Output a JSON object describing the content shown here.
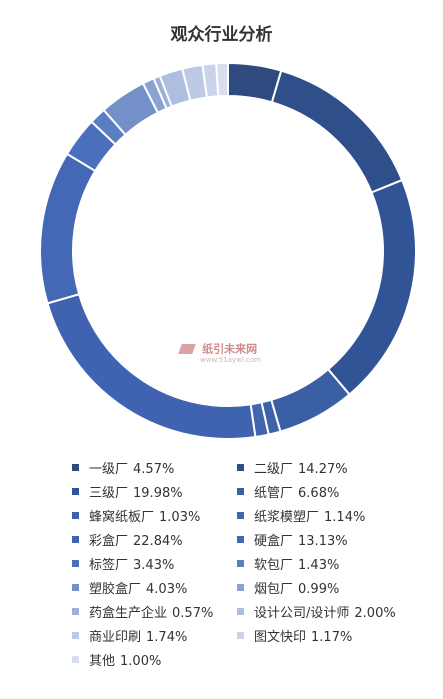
{
  "chart_data": {
    "type": "donut",
    "title": "观众行业分析",
    "series": [
      {
        "name": "一级厂",
        "value": 4.57,
        "label": "4.57%",
        "color": "#2f4a7f"
      },
      {
        "name": "二级厂",
        "value": 14.27,
        "label": "14.27%",
        "color": "#2f4f8a"
      },
      {
        "name": "三级厂",
        "value": 19.98,
        "label": "19.98%",
        "color": "#305495"
      },
      {
        "name": "纸管厂",
        "value": 6.68,
        "label": "6.68%",
        "color": "#3a5fa5"
      },
      {
        "name": "蜂窝纸板厂",
        "value": 1.03,
        "label": "1.03%",
        "color": "#3d63ab"
      },
      {
        "name": "纸浆模塑厂",
        "value": 1.14,
        "label": "1.14%",
        "color": "#4166ad"
      },
      {
        "name": "彩盒厂",
        "value": 22.84,
        "label": "22.84%",
        "color": "#3f63b1"
      },
      {
        "name": "硬盒厂",
        "value": 13.13,
        "label": "13.13%",
        "color": "#4568b6"
      },
      {
        "name": "标签厂",
        "value": 3.43,
        "label": "3.43%",
        "color": "#4a70bd"
      },
      {
        "name": "软包厂",
        "value": 1.43,
        "label": "1.43%",
        "color": "#5a7ec2"
      },
      {
        "name": "塑胶盒厂",
        "value": 4.03,
        "label": "4.03%",
        "color": "#7390c8"
      },
      {
        "name": "烟包厂",
        "value": 0.99,
        "label": "0.99%",
        "color": "#8ba2d1"
      },
      {
        "name": "药盒生产企业",
        "value": 0.57,
        "label": "0.57%",
        "color": "#9db0d8"
      },
      {
        "name": "设计公司/设计师",
        "value": 2.0,
        "label": "2.00%",
        "color": "#aebedf"
      },
      {
        "name": "商业印刷",
        "value": 1.74,
        "label": "1.74%",
        "color": "#bccae5"
      },
      {
        "name": "图文快印",
        "value": 1.17,
        "label": "1.17%",
        "color": "#c9d4ea"
      },
      {
        "name": "其他",
        "value": 1.0,
        "label": "1.00%",
        "color": "#d6deef"
      }
    ]
  },
  "watermark": {
    "main_text": "纸引未来网",
    "url_text": "www.51aywl.com"
  }
}
